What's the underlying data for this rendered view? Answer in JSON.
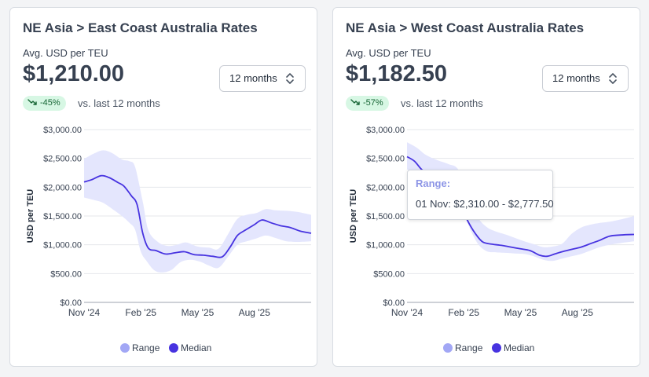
{
  "colors": {
    "range_fill": "#e4e6fd",
    "range_legend": "#a2a7f5",
    "median": "#4733e0",
    "grid": "#e5e7eb",
    "badge_bg": "#d7f7e4",
    "badge_text": "#166534"
  },
  "cards": [
    {
      "title": "NE Asia > East Coast Australia Rates",
      "subtitle": "Avg. USD per TEU",
      "value": "$1,210.00",
      "period_select": {
        "selected": "12 months",
        "icon": "chevron-up-down-icon"
      },
      "change_badge": {
        "icon": "trend-down-icon",
        "label": "-45%"
      },
      "comparison_text": "vs. last 12 months",
      "chart_data": {
        "type": "area",
        "ylabel": "USD per TEU",
        "xlabel": "",
        "ylim": [
          0,
          3000
        ],
        "y_ticks": [
          "$0.00",
          "$500.00",
          "$1,000.00",
          "$1,500.00",
          "$2,000.00",
          "$2,500.00",
          "$3,000.00"
        ],
        "x_ticks": [
          {
            "label": "Nov '24",
            "t": 0.0
          },
          {
            "label": "Feb '25",
            "t": 3.0
          },
          {
            "label": "May '25",
            "t": 6.0
          },
          {
            "label": "Aug '25",
            "t": 9.0
          }
        ],
        "x_range": [
          0,
          12
        ],
        "legend": [
          "Range",
          "Median"
        ],
        "legend_position": "bottom",
        "series": [
          {
            "name": "Median",
            "points": [
              [
                0,
                2090
              ],
              [
                0.4,
                2130
              ],
              [
                0.9,
                2200
              ],
              [
                1.3,
                2170
              ],
              [
                1.8,
                2080
              ],
              [
                2.1,
                2020
              ],
              [
                2.5,
                1850
              ],
              [
                2.8,
                1700
              ],
              [
                3.1,
                1200
              ],
              [
                3.4,
                940
              ],
              [
                3.8,
                900
              ],
              [
                4.3,
                840
              ],
              [
                4.8,
                860
              ],
              [
                5.3,
                880
              ],
              [
                5.8,
                830
              ],
              [
                6.3,
                820
              ],
              [
                6.8,
                800
              ],
              [
                7.3,
                790
              ],
              [
                7.7,
                950
              ],
              [
                8.1,
                1160
              ],
              [
                8.5,
                1250
              ],
              [
                9.0,
                1350
              ],
              [
                9.4,
                1430
              ],
              [
                9.9,
                1380
              ],
              [
                10.4,
                1330
              ],
              [
                10.9,
                1300
              ],
              [
                11.4,
                1240
              ],
              [
                12.0,
                1200
              ]
            ]
          },
          {
            "name": "Range",
            "upper": [
              [
                0,
                2490
              ],
              [
                0.5,
                2580
              ],
              [
                1.0,
                2640
              ],
              [
                1.5,
                2590
              ],
              [
                2.0,
                2480
              ],
              [
                2.4,
                2450
              ],
              [
                2.7,
                2350
              ],
              [
                3.1,
                1750
              ],
              [
                3.4,
                1250
              ],
              [
                3.9,
                1050
              ],
              [
                4.4,
                980
              ],
              [
                4.9,
                1000
              ],
              [
                5.4,
                1040
              ],
              [
                6.0,
                970
              ],
              [
                6.6,
                950
              ],
              [
                7.1,
                930
              ],
              [
                7.6,
                1180
              ],
              [
                8.1,
                1450
              ],
              [
                8.6,
                1520
              ],
              [
                9.1,
                1550
              ],
              [
                9.6,
                1620
              ],
              [
                10.1,
                1600
              ],
              [
                10.7,
                1590
              ],
              [
                11.3,
                1570
              ],
              [
                12.0,
                1520
              ]
            ],
            "lower": [
              [
                0,
                1820
              ],
              [
                0.5,
                1780
              ],
              [
                1.0,
                1730
              ],
              [
                1.5,
                1620
              ],
              [
                2.0,
                1500
              ],
              [
                2.4,
                1380
              ],
              [
                2.7,
                1260
              ],
              [
                3.0,
                880
              ],
              [
                3.3,
                720
              ],
              [
                3.7,
                560
              ],
              [
                4.1,
                520
              ],
              [
                4.6,
                560
              ],
              [
                5.1,
                700
              ],
              [
                5.6,
                740
              ],
              [
                6.1,
                710
              ],
              [
                6.6,
                640
              ],
              [
                7.1,
                600
              ],
              [
                7.6,
                790
              ],
              [
                8.1,
                1000
              ],
              [
                8.6,
                1060
              ],
              [
                9.1,
                1110
              ],
              [
                9.6,
                1160
              ],
              [
                10.1,
                1120
              ],
              [
                10.7,
                1060
              ],
              [
                11.3,
                1050
              ],
              [
                12.0,
                1060
              ]
            ]
          }
        ]
      }
    },
    {
      "title": "NE Asia > West Coast Australia Rates",
      "subtitle": "Avg. USD per TEU",
      "value": "$1,182.50",
      "period_select": {
        "selected": "12 months",
        "icon": "chevron-up-down-icon"
      },
      "change_badge": {
        "icon": "trend-down-icon",
        "label": "-57%"
      },
      "comparison_text": "vs. last 12 months",
      "tooltip": {
        "title": "Range:",
        "text": "01 Nov: $2,310.00 - $2,777.50"
      },
      "chart_data": {
        "type": "area",
        "ylabel": "USD per TEU",
        "xlabel": "",
        "ylim": [
          0,
          3000
        ],
        "y_ticks": [
          "$0.00",
          "$500.00",
          "$1,000.00",
          "$1,500.00",
          "$2,000.00",
          "$2,500.00",
          "$3,000.00"
        ],
        "x_ticks": [
          {
            "label": "Nov '24",
            "t": 0.0
          },
          {
            "label": "Feb '25",
            "t": 3.0
          },
          {
            "label": "May '25",
            "t": 6.0
          },
          {
            "label": "Aug '25",
            "t": 9.0
          }
        ],
        "x_range": [
          0,
          12
        ],
        "legend": [
          "Range",
          "Median"
        ],
        "legend_position": "bottom",
        "series": [
          {
            "name": "Median",
            "points": [
              [
                0,
                2530
              ],
              [
                0.4,
                2450
              ],
              [
                0.8,
                2300
              ],
              [
                1.2,
                2250
              ],
              [
                1.6,
                2200
              ],
              [
                2.0,
                2100
              ],
              [
                2.4,
                1900
              ],
              [
                2.8,
                1700
              ],
              [
                3.2,
                1420
              ],
              [
                3.6,
                1200
              ],
              [
                4.0,
                1050
              ],
              [
                4.5,
                1010
              ],
              [
                5.0,
                990
              ],
              [
                5.5,
                960
              ],
              [
                6.0,
                930
              ],
              [
                6.5,
                900
              ],
              [
                7.0,
                820
              ],
              [
                7.4,
                800
              ],
              [
                7.8,
                840
              ],
              [
                8.2,
                880
              ],
              [
                8.7,
                920
              ],
              [
                9.2,
                960
              ],
              [
                9.7,
                1020
              ],
              [
                10.2,
                1080
              ],
              [
                10.7,
                1150
              ],
              [
                11.3,
                1170
              ],
              [
                12.0,
                1180
              ]
            ]
          },
          {
            "name": "Range",
            "upper": [
              [
                0,
                2780
              ],
              [
                0.5,
                2690
              ],
              [
                1.0,
                2560
              ],
              [
                1.6,
                2470
              ],
              [
                2.2,
                2400
              ],
              [
                2.7,
                2310
              ],
              [
                3.2,
                1900
              ],
              [
                3.7,
                1500
              ],
              [
                4.2,
                1310
              ],
              [
                4.7,
                1230
              ],
              [
                5.2,
                1180
              ],
              [
                5.7,
                1120
              ],
              [
                6.2,
                1060
              ],
              [
                6.7,
                1010
              ],
              [
                7.2,
                960
              ],
              [
                7.7,
                970
              ],
              [
                8.2,
                1020
              ],
              [
                8.7,
                1190
              ],
              [
                9.2,
                1300
              ],
              [
                9.7,
                1350
              ],
              [
                10.2,
                1380
              ],
              [
                10.7,
                1400
              ],
              [
                11.3,
                1440
              ],
              [
                12.0,
                1500
              ]
            ],
            "lower": [
              [
                0,
                2310
              ],
              [
                0.5,
                2230
              ],
              [
                1.0,
                2120
              ],
              [
                1.6,
                2050
              ],
              [
                2.2,
                1980
              ],
              [
                2.7,
                1860
              ],
              [
                3.2,
                1380
              ],
              [
                3.7,
                1040
              ],
              [
                4.2,
                890
              ],
              [
                4.7,
                870
              ],
              [
                5.2,
                860
              ],
              [
                5.7,
                850
              ],
              [
                6.2,
                840
              ],
              [
                6.7,
                800
              ],
              [
                7.2,
                740
              ],
              [
                7.7,
                720
              ],
              [
                8.2,
                760
              ],
              [
                8.7,
                800
              ],
              [
                9.2,
                840
              ],
              [
                9.7,
                900
              ],
              [
                10.2,
                960
              ],
              [
                10.7,
                1000
              ],
              [
                11.3,
                1030
              ],
              [
                12.0,
                1060
              ]
            ]
          }
        ]
      }
    }
  ]
}
